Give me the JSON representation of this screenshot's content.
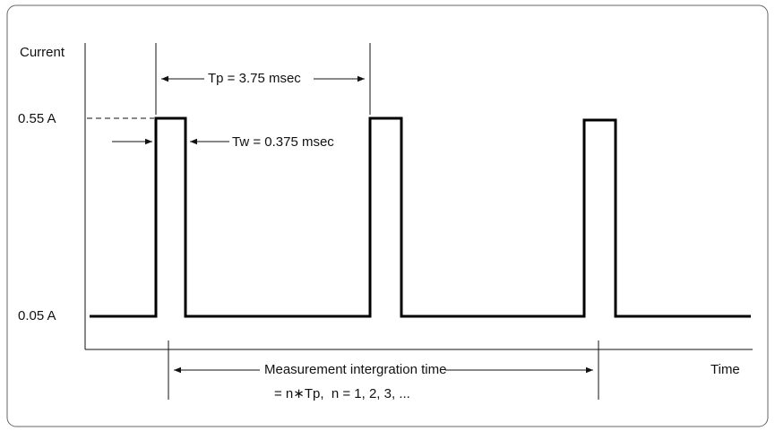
{
  "axes": {
    "y_label": "Current",
    "x_label": "Time"
  },
  "levels": {
    "high": "0.55 A",
    "low": "0.05 A"
  },
  "annotations": {
    "period": "Tp = 3.75 msec",
    "width": "Tw = 0.375 msec",
    "integration": "Measurement intergration time",
    "integration_formula": "= n∗Tp,  n = 1, 2, 3, ..."
  }
}
